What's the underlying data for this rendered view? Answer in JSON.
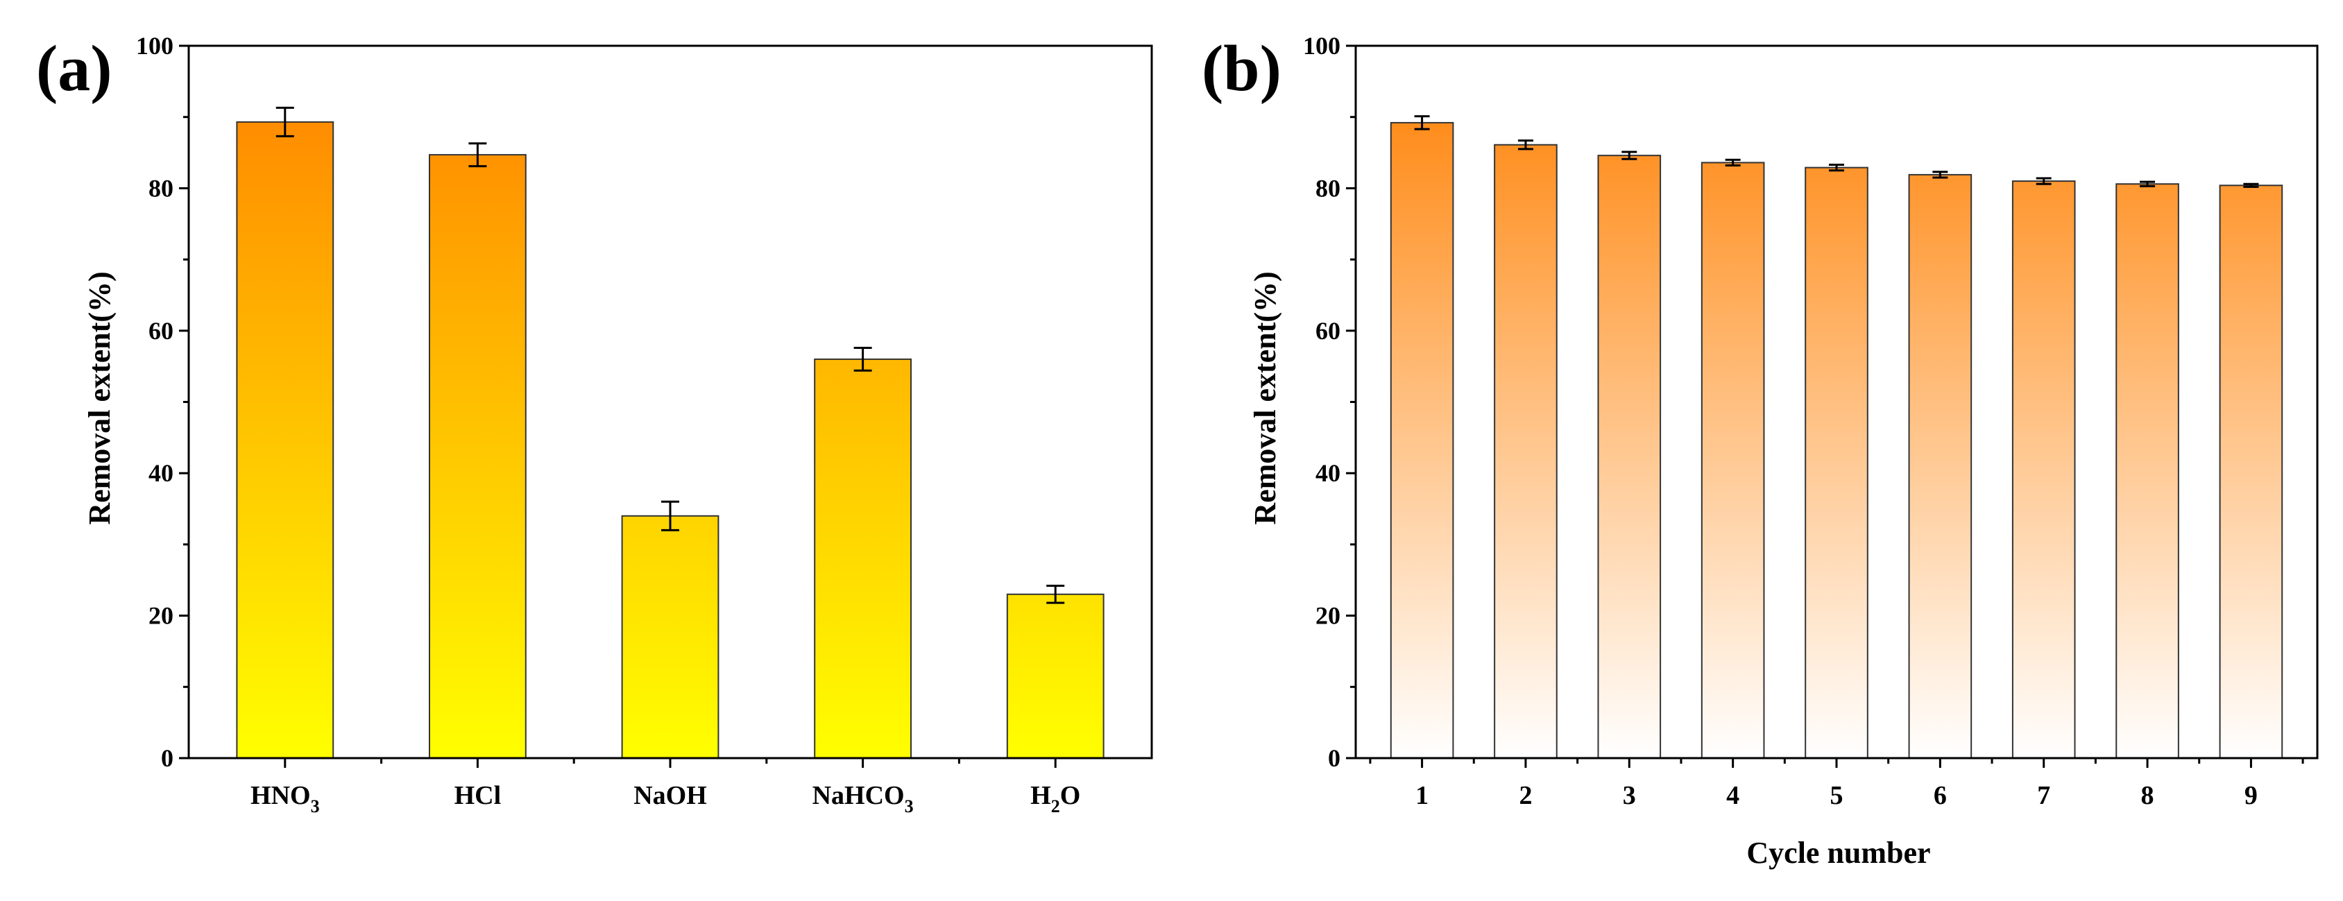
{
  "figure": {
    "panel_a_label": "(a)",
    "panel_b_label": "(b)"
  },
  "colors": {
    "orange": "#ff7f00",
    "yellow": "#ffff00",
    "white": "#ffffff",
    "axis": "#000000"
  },
  "chart_data": [
    {
      "type": "bar",
      "panel": "(a)",
      "title": "",
      "xlabel": "",
      "ylabel": "Removal extent(%)",
      "ylim": [
        0,
        100
      ],
      "yticks": [
        0,
        20,
        40,
        60,
        80,
        100
      ],
      "grid": false,
      "fill": "gradient orange (top) to yellow (bottom)",
      "categories": [
        {
          "base": "HNO",
          "sub": "3",
          "tail": ""
        },
        {
          "base": "HCl",
          "sub": "",
          "tail": ""
        },
        {
          "base": "NaOH",
          "sub": "",
          "tail": ""
        },
        {
          "base": "NaHCO",
          "sub": "3",
          "tail": ""
        },
        {
          "base": "H",
          "sub": "2",
          "tail": "O"
        }
      ],
      "values": [
        89.3,
        84.7,
        34.0,
        56.0,
        23.0
      ],
      "errors": [
        2.0,
        1.6,
        2.0,
        1.6,
        1.2
      ]
    },
    {
      "type": "bar",
      "panel": "(b)",
      "title": "",
      "xlabel": "Cycle number",
      "ylabel": "Removal extent(%)",
      "ylim": [
        0,
        100
      ],
      "yticks": [
        0,
        20,
        40,
        60,
        80,
        100
      ],
      "grid": false,
      "fill": "gradient orange (top) to white (bottom)",
      "categories": [
        "1",
        "2",
        "3",
        "4",
        "5",
        "6",
        "7",
        "8",
        "9"
      ],
      "values": [
        89.2,
        86.1,
        84.6,
        83.6,
        82.9,
        81.9,
        81.0,
        80.6,
        80.4
      ],
      "errors": [
        0.9,
        0.6,
        0.5,
        0.4,
        0.4,
        0.4,
        0.4,
        0.3,
        0.2
      ]
    }
  ]
}
